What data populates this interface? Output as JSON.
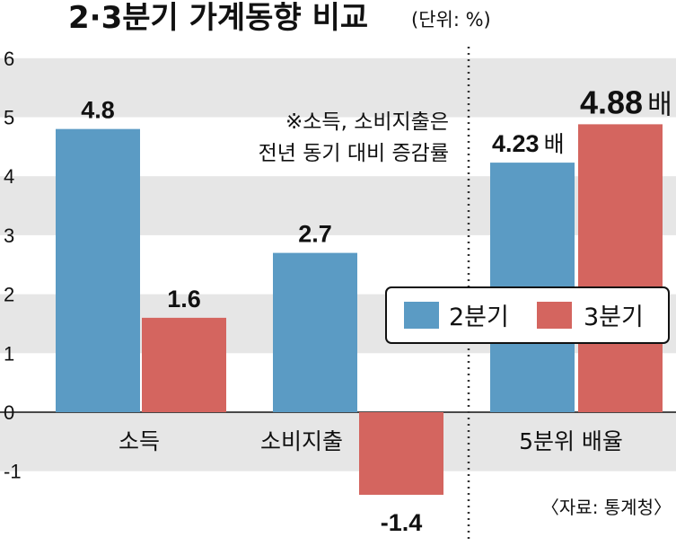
{
  "chart_data": {
    "type": "bar",
    "title": "2·3분기 가계동향 비교",
    "unit": "(단위: %)",
    "categories": [
      "소득",
      "소비지출",
      "5분위 배율"
    ],
    "series": [
      {
        "name": "2분기",
        "values": [
          4.8,
          2.7,
          4.23
        ],
        "labels": [
          "4.8",
          "2.7",
          "4.23"
        ],
        "color": "#5b9bc4"
      },
      {
        "name": "3분기",
        "values": [
          1.6,
          -1.4,
          4.88
        ],
        "labels": [
          "1.6",
          "-1.4",
          "4.88"
        ],
        "color": "#d4655f"
      }
    ],
    "label_suffix": [
      "",
      "",
      "배"
    ],
    "ylim": [
      -2,
      6
    ],
    "yticks": [
      6,
      5,
      4,
      3,
      2,
      1,
      0,
      -1
    ],
    "note": [
      "※소득, 소비지출은",
      "전년 동기 대비 증감률"
    ],
    "source": "〈자료: 통계청〉",
    "grid": "alternating bands",
    "legend": "right"
  }
}
